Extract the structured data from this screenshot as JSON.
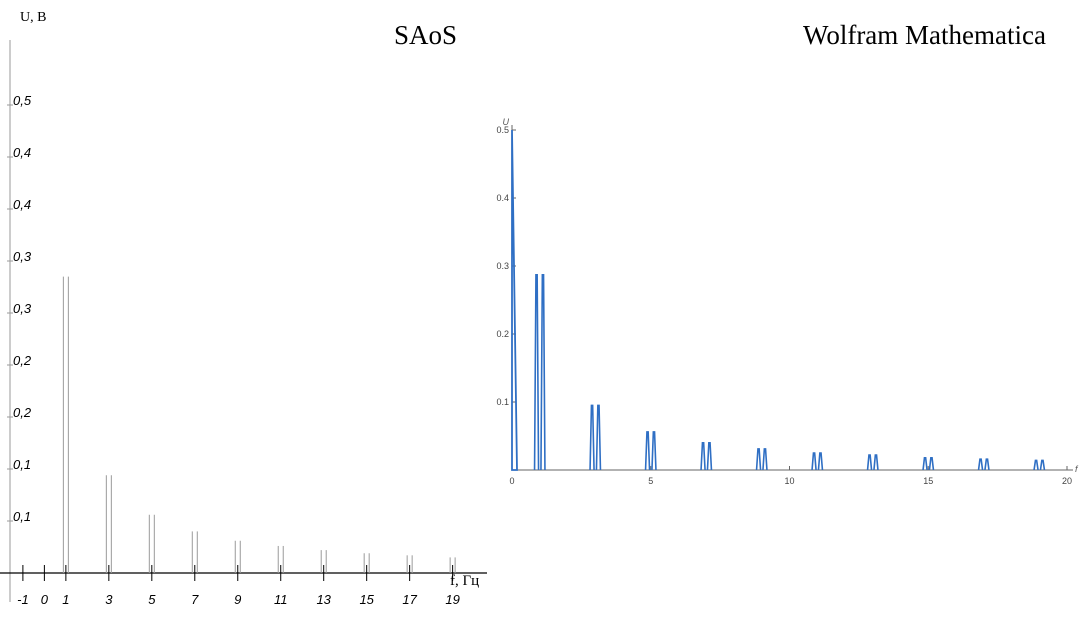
{
  "titles": {
    "left": "SAoS",
    "right": "Wolfram Mathematica"
  },
  "colors": {
    "left_lines": "#9a9a9a",
    "axis": "#000000",
    "right_peaks": "#2f6fc4",
    "right_axis": "#666666"
  },
  "chart_data": [
    {
      "type": "bar",
      "title": "SAoS",
      "xlabel": "f, Гц",
      "ylabel": "U, В",
      "xlim": [
        -1.6,
        20.6
      ],
      "ylim": [
        0,
        0.5
      ],
      "x_tick_labels": [
        "-1",
        "0",
        "1",
        "3",
        "5",
        "7",
        "9",
        "11",
        "13",
        "15",
        "17",
        "19"
      ],
      "x_tick_values": [
        -1,
        0,
        1,
        3,
        5,
        7,
        9,
        11,
        13,
        15,
        17,
        19
      ],
      "y_tick_labels": [
        "0,1",
        "0,1",
        "0,2",
        "0,2",
        "0,3",
        "0,3",
        "0,4",
        "0,4",
        "0,5"
      ],
      "y_tick_values": [
        0.05,
        0.1,
        0.15,
        0.2,
        0.25,
        0.3,
        0.35,
        0.4,
        0.45
      ],
      "peaks": {
        "f": [
          1,
          3,
          5,
          7,
          9,
          11,
          13,
          15,
          17,
          19
        ],
        "U": [
          0.285,
          0.094,
          0.056,
          0.04,
          0.031,
          0.026,
          0.022,
          0.019,
          0.017,
          0.015
        ]
      },
      "grid": false
    },
    {
      "type": "line",
      "title": "Wolfram Mathematica",
      "xlabel": "f",
      "ylabel": "U",
      "xlim": [
        0,
        20
      ],
      "ylim": [
        0,
        0.5
      ],
      "x_ticks": [
        0,
        5,
        10,
        15,
        20
      ],
      "y_ticks": [
        0.1,
        0.2,
        0.3,
        0.4,
        0.5
      ],
      "x_tick_labels": [
        "0",
        "5",
        "10",
        "15",
        "20"
      ],
      "y_tick_labels": [
        "0.1",
        "0.2",
        "0.3",
        "0.4",
        "0.5"
      ],
      "peaks": {
        "f": [
          0,
          1,
          3,
          5,
          7,
          9,
          11,
          13,
          15,
          17,
          19
        ],
        "U": [
          0.5,
          0.287,
          0.095,
          0.056,
          0.04,
          0.031,
          0.025,
          0.022,
          0.018,
          0.016,
          0.014
        ]
      },
      "grid": false
    }
  ]
}
